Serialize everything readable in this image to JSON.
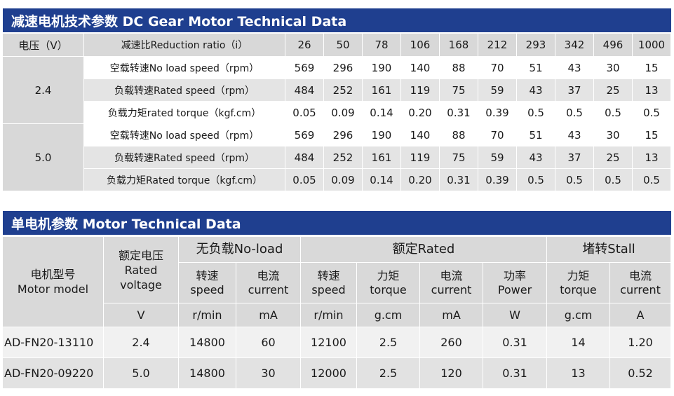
{
  "gear_section": {
    "title": "减速电机技术参数 DC Gear Motor Technical Data",
    "header": {
      "voltage_label": "电压（V）",
      "ratio_label": "减速比Reduction ratio（i）",
      "ratios": [
        "26",
        "50",
        "78",
        "106",
        "168",
        "212",
        "293",
        "342",
        "496",
        "1000"
      ]
    },
    "groups": [
      {
        "voltage": "2.4",
        "rows": [
          {
            "label": "空载转速No load speed（rpm）",
            "values": [
              "569",
              "296",
              "190",
              "140",
              "88",
              "70",
              "51",
              "43",
              "30",
              "15"
            ]
          },
          {
            "label": "负载转速Rated speed（rpm）",
            "values": [
              "484",
              "252",
              "161",
              "119",
              "75",
              "59",
              "43",
              "37",
              "25",
              "13"
            ]
          },
          {
            "label": "负载力矩rated torque（kgf.cm）",
            "values": [
              "0.05",
              "0.09",
              "0.14",
              "0.20",
              "0.31",
              "0.39",
              "0.5",
              "0.5",
              "0.5",
              "0.5"
            ]
          }
        ]
      },
      {
        "voltage": "5.0",
        "rows": [
          {
            "label": "空载转速No load speed（rpm）",
            "values": [
              "569",
              "296",
              "190",
              "140",
              "88",
              "70",
              "51",
              "43",
              "30",
              "15"
            ]
          },
          {
            "label": "负载转速Rated speed（rpm）",
            "values": [
              "484",
              "252",
              "161",
              "119",
              "75",
              "59",
              "43",
              "37",
              "25",
              "13"
            ]
          },
          {
            "label": "负载力矩Rated torque（kgf.cm）",
            "values": [
              "0.05",
              "0.09",
              "0.14",
              "0.20",
              "0.31",
              "0.39",
              "0.5",
              "0.5",
              "0.5",
              "0.5"
            ]
          }
        ]
      }
    ]
  },
  "motor_section": {
    "title": "单电机参数 Motor Technical Data",
    "header": {
      "model_cn": "电机型号",
      "model_en": "Motor model",
      "rated_voltage_cn": "额定电压",
      "rated_voltage_en": "Rated voltage",
      "no_load_group": "无负载No-load",
      "rated_group": "额定Rated",
      "stall_group": "堵转Stall",
      "columns": [
        {
          "cn": "转速",
          "en": "speed",
          "unit": "r/min"
        },
        {
          "cn": "电流",
          "en": "current",
          "unit": "mA"
        },
        {
          "cn": "转速",
          "en": "speed",
          "unit": "r/min"
        },
        {
          "cn": "力矩",
          "en": "torque",
          "unit": "g.cm"
        },
        {
          "cn": "电流",
          "en": "current",
          "unit": "mA"
        },
        {
          "cn": "功率",
          "en": "Power",
          "unit": "W"
        },
        {
          "cn": "力矩",
          "en": "torque",
          "unit": "g.cm"
        },
        {
          "cn": "电流",
          "en": "current",
          "unit": "A"
        }
      ],
      "voltage_unit": "V"
    },
    "rows": [
      {
        "model": "AD-FN20-13110",
        "voltage": "2.4",
        "values": [
          "14800",
          "60",
          "12100",
          "2.5",
          "260",
          "0.31",
          "14",
          "1.20"
        ]
      },
      {
        "model": "AD-FN20-09220",
        "voltage": "5.0",
        "values": [
          "14800",
          "30",
          "12000",
          "2.5",
          "120",
          "0.31",
          "13",
          "0.52"
        ]
      }
    ]
  }
}
